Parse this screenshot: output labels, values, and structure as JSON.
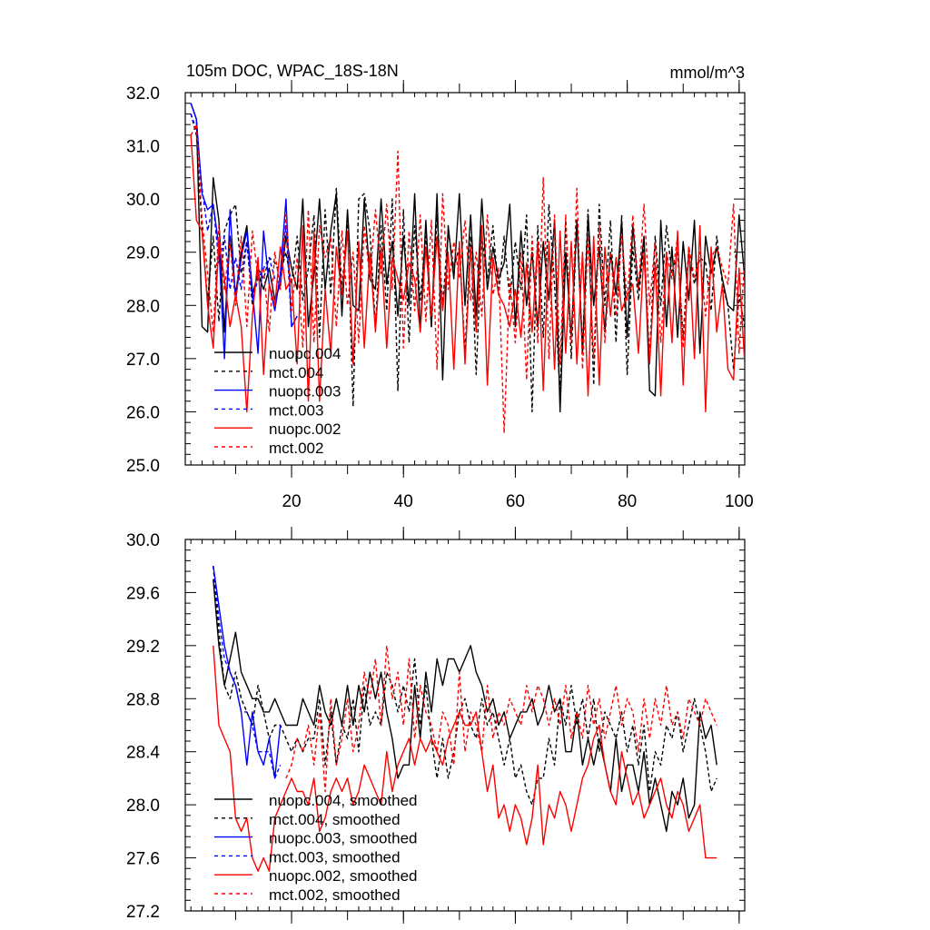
{
  "chart_data": [
    {
      "type": "line",
      "title": "105m DOC, WPAC_18S-18N",
      "units": "mmol/m^3",
      "xlim": [
        1,
        101
      ],
      "ylim": [
        25.0,
        32.0
      ],
      "x_ticks": [
        20,
        40,
        60,
        80,
        100
      ],
      "y_ticks": [
        "25.0",
        "26.0",
        "27.0",
        "28.0",
        "29.0",
        "30.0",
        "31.0",
        "32.0"
      ],
      "legend_position": "bottom-left",
      "series": [
        {
          "name": "nuopc.004",
          "color": "#000000",
          "dash": "solid",
          "x_start": 2,
          "values": [
            31.8,
            31.5,
            27.6,
            27.5,
            30.4,
            29.6,
            27.5,
            29.3,
            28.2,
            29.0,
            29.5,
            28.2,
            28.6,
            28.3,
            28.7,
            28.1,
            28.4,
            29.3,
            28.7,
            28.3,
            30.0,
            27.6,
            28.6,
            30.0,
            28.3,
            29.4,
            30.1,
            27.8,
            29.8,
            28.0,
            27.9,
            30.0,
            28.5,
            28.3,
            30.0,
            28.4,
            29.2,
            27.8,
            29.3,
            28.0,
            30.1,
            27.5,
            29.6,
            27.6,
            30.1,
            26.6,
            29.5,
            28.5,
            30.1,
            28.0,
            29.7,
            27.8,
            30.0,
            28.3,
            29.1,
            28.5,
            28.8,
            29.9,
            27.6,
            29.4,
            28.0,
            29.0,
            27.6,
            29.2,
            28.1,
            29.6,
            26.0,
            29.0,
            27.4,
            29.6,
            27.1,
            29.7,
            28.0,
            29.1,
            27.5,
            29.0,
            28.2,
            29.6,
            27.4,
            29.5,
            28.3,
            29.3,
            26.4,
            26.3,
            29.6,
            27.6,
            29.1,
            27.4,
            29.2,
            28.1,
            29.6,
            27.1,
            29.3,
            28.6,
            29.1,
            28.5,
            28.0,
            27.9,
            29.7,
            28.5,
            27.1
          ]
        },
        {
          "name": "mct.004",
          "color": "#000000",
          "dash": "dashed",
          "x_start": 2,
          "values": [
            31.6,
            31.2,
            29.4,
            28.1,
            29.3,
            27.7,
            29.4,
            29.7,
            29.9,
            28.6,
            29.2,
            28.0,
            28.7,
            28.5,
            28.9,
            28.8,
            28.6,
            29.0,
            28.4,
            29.3,
            28.1,
            28.7,
            29.7,
            27.4,
            29.8,
            28.2,
            30.2,
            28.3,
            29.6,
            26.1,
            30.0,
            30.1,
            29.4,
            27.6,
            29.5,
            27.9,
            30.0,
            26.4,
            29.8,
            27.3,
            29.5,
            28.1,
            29.3,
            27.6,
            29.7,
            28.0,
            29.4,
            28.7,
            29.1,
            27.1,
            29.3,
            26.7,
            29.3,
            28.5,
            29.5,
            28.2,
            29.3,
            28.1,
            29.2,
            28.3,
            29.7,
            26.0,
            29.5,
            27.4,
            29.9,
            28.4,
            26.3,
            29.6,
            27.0,
            29.6,
            27.2,
            29.8,
            26.5,
            29.9,
            28.0,
            29.6,
            27.3,
            29.7,
            26.7,
            29.1,
            28.1,
            29.2,
            27.0,
            29.3,
            28.0,
            29.5,
            28.6,
            29.0,
            27.4,
            29.1,
            28.4,
            28.9,
            28.8,
            27.9,
            29.3,
            28.4,
            28.0,
            26.8,
            28.2,
            27.6,
            27.0
          ]
        },
        {
          "name": "nuopc.003",
          "color": "#0000ff",
          "dash": "solid",
          "x_start": 2,
          "values": [
            31.8,
            31.5,
            30.1,
            29.8,
            29.9,
            29.1,
            27.0,
            29.8,
            28.1,
            28.9,
            29.4,
            28.3,
            27.1,
            29.4,
            28.4,
            27.9,
            28.6,
            30.0,
            27.6,
            27.8
          ]
        },
        {
          "name": "mct.003",
          "color": "#0000ff",
          "dash": "dashed",
          "x_start": 2,
          "values": [
            31.6,
            31.3,
            30.2,
            29.4,
            29.9,
            28.8,
            29.3,
            28.3,
            28.9,
            28.3,
            29.2,
            28.1,
            28.5,
            28.7,
            28.9,
            28.5,
            28.4,
            29.5,
            27.6
          ]
        },
        {
          "name": "nuopc.002",
          "color": "#ff0000",
          "dash": "solid",
          "x_start": 2,
          "values": [
            31.2,
            29.6,
            29.4,
            28.0,
            27.2,
            29.2,
            28.5,
            27.6,
            28.2,
            27.6,
            26.0,
            27.8,
            28.9,
            26.7,
            28.4,
            28.0,
            29.1,
            28.3,
            28.5,
            26.9,
            29.5,
            26.2,
            29.4,
            26.2,
            28.3,
            27.1,
            29.1,
            28.2,
            29.4,
            26.9,
            29.2,
            27.2,
            29.0,
            27.5,
            29.1,
            27.2,
            28.9,
            28.5,
            28.1,
            28.8,
            28.5,
            27.5,
            29.1,
            27.8,
            29.3,
            27.9,
            29.0,
            26.8,
            29.2,
            26.9,
            29.1,
            27.5,
            29.5,
            26.5,
            28.9,
            28.2,
            28.0,
            27.6,
            28.3,
            27.4,
            28.8,
            27.5,
            29.2,
            26.4,
            29.2,
            26.8,
            29.4,
            27.1,
            29.2,
            26.9,
            29.0,
            26.3,
            29.3,
            26.5,
            29.1,
            27.8,
            28.9,
            27.9,
            28.2,
            28.4,
            27.1,
            29.0,
            26.9,
            28.8,
            26.3,
            29.0,
            27.3,
            29.4,
            26.5,
            29.1,
            27.0,
            29.5,
            26.0,
            29.1,
            27.5,
            28.4,
            26.8,
            26.6,
            28.7,
            26.9,
            29.2
          ]
        },
        {
          "name": "mct.002",
          "color": "#ff0000",
          "dash": "dashed",
          "x_start": 2,
          "values": [
            31.2,
            31.4,
            29.6,
            28.6,
            27.5,
            29.5,
            28.3,
            29.2,
            28.0,
            29.3,
            27.6,
            29.4,
            28.5,
            28.7,
            27.5,
            29.0,
            28.3,
            29.7,
            27.9,
            28.9,
            27.2,
            29.8,
            27.3,
            29.5,
            28.9,
            29.3,
            27.6,
            29.4,
            28.0,
            29.0,
            27.3,
            29.5,
            28.5,
            29.8,
            28.6,
            29.9,
            28.3,
            30.9,
            27.2,
            29.4,
            27.9,
            29.7,
            27.7,
            29.6,
            26.8,
            30.1,
            28.3,
            29.2,
            28.5,
            29.6,
            28.1,
            29.0,
            27.8,
            29.7,
            28.2,
            28.7,
            25.6,
            28.5,
            27.3,
            29.0,
            26.6,
            29.3,
            27.3,
            30.4,
            27.0,
            29.7,
            26.9,
            29.7,
            27.3,
            30.2,
            26.8,
            29.3,
            27.0,
            29.5,
            27.3,
            29.0,
            27.8,
            29.3,
            28.1,
            29.7,
            28.3,
            29.9,
            28.0,
            29.2,
            27.3,
            29.0,
            28.5,
            29.3,
            27.2,
            29.1,
            28.5,
            29.0,
            27.8,
            28.9,
            29.1,
            28.7,
            28.4,
            29.9,
            27.1,
            28.9,
            28.0
          ]
        }
      ]
    },
    {
      "type": "line",
      "title": "",
      "xlim": [
        1,
        101
      ],
      "ylim": [
        27.2,
        30.0
      ],
      "x_ticks": [
        20,
        40,
        60,
        80,
        100
      ],
      "y_ticks": [
        "27.2",
        "27.6",
        "28.0",
        "28.4",
        "28.8",
        "29.2",
        "29.6",
        "30.0"
      ],
      "legend_position": "bottom-left",
      "series": [
        {
          "name": "nuopc.004, smoothed",
          "color": "#000000",
          "dash": "solid",
          "x_start": 6,
          "values": [
            29.7,
            29.2,
            28.9,
            29.1,
            29.3,
            29.0,
            28.9,
            28.8,
            28.8,
            28.7,
            28.7,
            28.8,
            28.7,
            28.6,
            28.6,
            28.6,
            28.8,
            28.7,
            28.6,
            28.9,
            28.7,
            28.6,
            28.8,
            28.6,
            28.9,
            28.6,
            28.9,
            28.7,
            29.0,
            28.8,
            29.0,
            28.7,
            28.5,
            28.2,
            28.3,
            28.3,
            28.9,
            28.5,
            29.0,
            28.7,
            29.1,
            28.9,
            29.1,
            29.1,
            29.0,
            29.1,
            29.2,
            29.0,
            28.9,
            28.7,
            28.8,
            28.6,
            28.7,
            28.5,
            28.6,
            28.7,
            28.7,
            28.8,
            28.6,
            28.7,
            28.9,
            28.7,
            28.8,
            28.4,
            28.4,
            28.7,
            28.3,
            28.5,
            28.3,
            28.5,
            28.3,
            28.1,
            28.5,
            28.1,
            28.3,
            28.3,
            28.1,
            28.4,
            28.0,
            28.2,
            28.0,
            27.8,
            28.1,
            28.0,
            28.2,
            27.9,
            28.0,
            28.7,
            28.5,
            28.6,
            28.3
          ]
        },
        {
          "name": "mct.004, smoothed",
          "color": "#000000",
          "dash": "dashed",
          "x_start": 6,
          "values": [
            29.8,
            29.3,
            28.9,
            28.8,
            29.0,
            28.8,
            28.7,
            28.6,
            28.9,
            28.7,
            28.5,
            28.6,
            28.6,
            28.5,
            28.4,
            28.5,
            28.4,
            28.5,
            28.5,
            28.8,
            28.3,
            28.7,
            28.3,
            28.6,
            28.5,
            28.8,
            28.4,
            28.9,
            28.6,
            28.7,
            28.6,
            29.0,
            28.9,
            28.7,
            28.9,
            28.7,
            29.1,
            28.6,
            28.9,
            28.5,
            28.2,
            28.5,
            28.2,
            28.4,
            28.7,
            28.8,
            28.6,
            28.5,
            28.8,
            28.6,
            28.7,
            28.5,
            28.3,
            28.5,
            28.2,
            28.3,
            28.1,
            28.0,
            28.2,
            28.2,
            28.5,
            28.3,
            28.8,
            28.6,
            28.9,
            28.6,
            28.8,
            28.5,
            28.8,
            28.4,
            28.7,
            28.6,
            28.5,
            28.7,
            28.4,
            28.6,
            28.3,
            28.6,
            28.1,
            28.4,
            28.3,
            28.6,
            28.5,
            28.7,
            28.4,
            28.6,
            28.8,
            28.6,
            28.4,
            28.1,
            28.2
          ]
        },
        {
          "name": "nuopc.003, smoothed",
          "color": "#0000ff",
          "dash": "solid",
          "x_start": 6,
          "values": [
            29.8,
            29.5,
            29.2,
            29.0,
            28.9,
            28.7,
            28.3,
            28.7,
            28.4,
            28.3,
            28.5,
            28.2,
            28.6
          ]
        },
        {
          "name": "mct.003, smoothed",
          "color": "#0000ff",
          "dash": "dashed",
          "x_start": 6,
          "values": [
            29.8,
            29.4,
            29.1,
            29.0,
            28.9,
            28.7,
            28.7,
            28.6,
            28.4,
            28.4,
            28.4,
            28.2,
            28.3
          ]
        },
        {
          "name": "nuopc.002, smoothed",
          "color": "#ff0000",
          "dash": "solid",
          "x_start": 6,
          "values": [
            29.2,
            28.6,
            28.5,
            28.4,
            27.9,
            27.8,
            27.9,
            27.6,
            27.5,
            27.6,
            27.5,
            27.9,
            28.0,
            28.1,
            28.2,
            28.1,
            28.1,
            28.0,
            28.2,
            27.8,
            27.9,
            28.1,
            28.2,
            28.1,
            28.2,
            28.0,
            28.1,
            28.3,
            28.2,
            28.1,
            28.0,
            28.4,
            28.1,
            28.3,
            28.4,
            28.5,
            28.3,
            28.5,
            28.4,
            28.5,
            28.4,
            28.3,
            28.5,
            28.6,
            28.7,
            28.6,
            28.6,
            28.7,
            28.4,
            28.1,
            28.3,
            27.9,
            28.0,
            27.8,
            28.0,
            27.9,
            27.7,
            27.9,
            28.3,
            27.7,
            28.0,
            27.9,
            28.1,
            28.0,
            27.8,
            28.0,
            28.2,
            28.3,
            28.5,
            28.6,
            28.3,
            28.1,
            28.0,
            28.4,
            28.2,
            28.0,
            28.1,
            27.9,
            28.0,
            28.1,
            28.2,
            28.0,
            27.9,
            28.1,
            28.0,
            27.8,
            27.9,
            28.0,
            27.6,
            27.6,
            27.6
          ]
        },
        {
          "name": "mct.002, smoothed",
          "color": "#ff0000",
          "dash": "dashed",
          "x_start": 19,
          "values": [
            28.2,
            28.3,
            28.5,
            28.4,
            28.6,
            28.3,
            28.7,
            28.1,
            28.8,
            28.3,
            28.5,
            28.8,
            28.4,
            28.6,
            29.0,
            28.8,
            29.1,
            28.6,
            29.2,
            28.8,
            29.0,
            28.6,
            29.1,
            28.5,
            28.9,
            28.7,
            28.6,
            28.4,
            28.7,
            28.6,
            28.3,
            29.0,
            28.4,
            28.7,
            28.6,
            28.4,
            28.9,
            28.5,
            28.7,
            28.6,
            28.8,
            28.7,
            28.6,
            28.9,
            28.7,
            28.9,
            28.8,
            28.6,
            28.8,
            28.6,
            28.9,
            28.5,
            28.7,
            28.5,
            28.9,
            28.6,
            28.8,
            28.5,
            28.7,
            28.9,
            28.6,
            28.8,
            28.7,
            28.4,
            28.8,
            28.5,
            28.8,
            28.6,
            28.9,
            28.6,
            28.7,
            28.5,
            28.8,
            28.7,
            28.6,
            28.8,
            28.7,
            28.6
          ]
        }
      ]
    }
  ]
}
